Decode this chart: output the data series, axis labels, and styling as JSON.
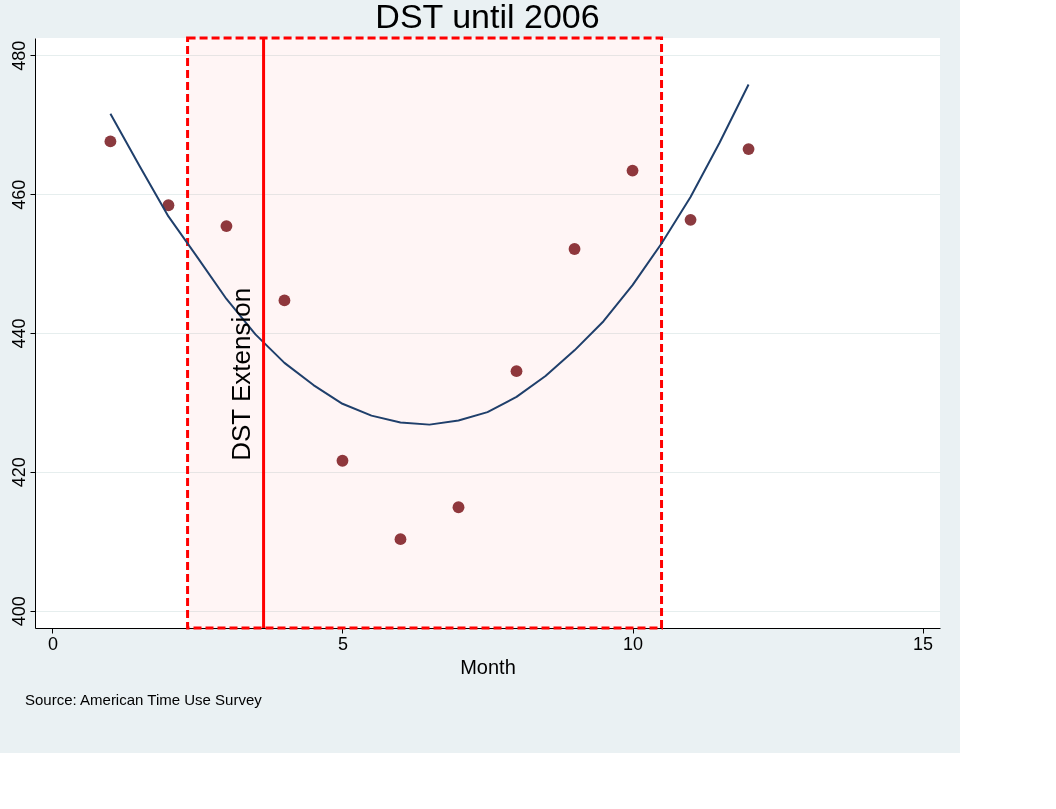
{
  "chart_data": {
    "type": "scatter",
    "title": "DST until 2006",
    "xlabel": "Month",
    "xlim": [
      -0.3,
      15.3
    ],
    "xticks": [
      0,
      5,
      10,
      15
    ],
    "ylim": [
      397.5,
      482.5
    ],
    "yticks": [
      400,
      420,
      440,
      460,
      480
    ],
    "grid": "y",
    "marker": "circle",
    "series": [
      {
        "color": "#8b3a3f",
        "x": [
          1,
          2,
          3,
          4,
          5,
          6,
          7,
          8,
          9,
          10,
          11,
          12
        ],
        "values": [
          467.6,
          458.4,
          455.4,
          444.7,
          421.6,
          410.3,
          414.9,
          434.5,
          452.1,
          463.4,
          456.3,
          466.5
        ]
      },
      {
        "type": "line",
        "color": "#1f3f6b",
        "marker": "none",
        "x": [
          1,
          1.5,
          2,
          2.5,
          3,
          3.5,
          4,
          4.5,
          5,
          5.5,
          6,
          6.5,
          7,
          7.5,
          8,
          8.5,
          9,
          9.5,
          10,
          10.5,
          11,
          11.5,
          12
        ],
        "values": [
          471.6,
          464.1,
          456.8,
          450.9,
          444.9,
          439.8,
          435.7,
          432.5,
          429.8,
          428.1,
          427.1,
          426.8,
          427.4,
          428.6,
          430.8,
          433.8,
          437.5,
          441.7,
          446.9,
          452.9,
          459.6,
          467.4,
          475.8
        ]
      }
    ],
    "ref_lines": [
      {
        "axis": "x",
        "value": 3.64,
        "label": "DST Extension",
        "color": "#ff0000",
        "line_style": "solid"
      }
    ],
    "bands": [
      {
        "axis": "x",
        "from": 2.33,
        "to": 10.5,
        "color": "#ff0000"
      }
    ],
    "annotations": [
      "Source: American Time Use Survey"
    ]
  }
}
